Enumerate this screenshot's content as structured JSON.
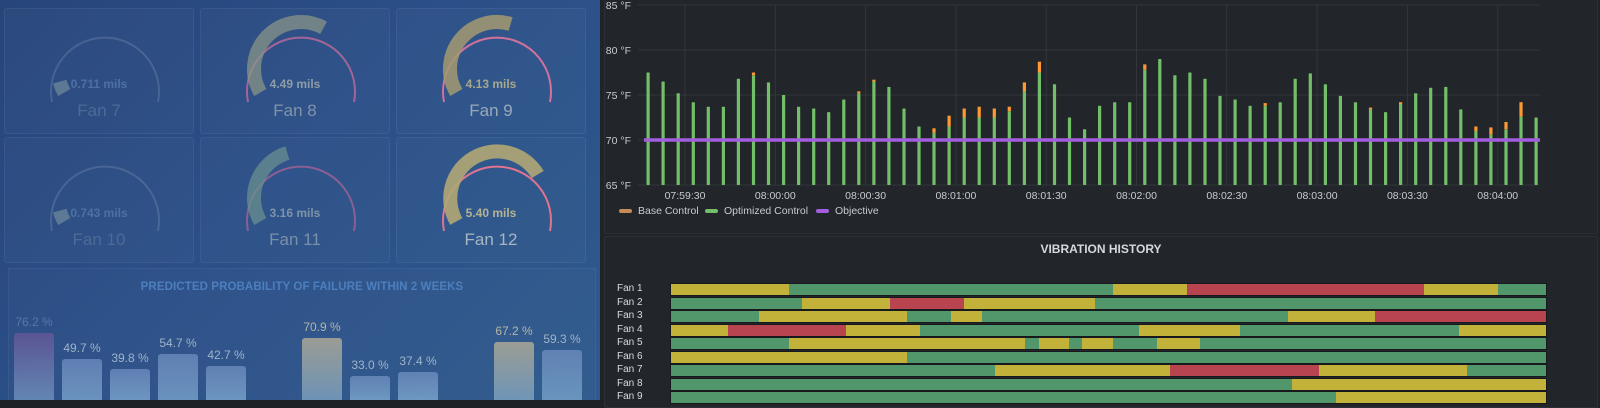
{
  "colors": {
    "optimized": "#73bf69",
    "base": "#ff9830",
    "objective": "#a35ee0",
    "vib_green": "#52976b",
    "vib_yellow": "#c2b23a",
    "vib_red": "#b8444f"
  },
  "gauges": [
    {
      "name": "Fan 7",
      "value_text": "0.711 mils",
      "fraction": 0.06
    },
    {
      "name": "Fan 8",
      "value_text": "4.49 mils",
      "fraction": 0.62
    },
    {
      "name": "Fan 9",
      "value_text": "4.13 mils",
      "fraction": 0.57
    },
    {
      "name": "Fan 10",
      "value_text": "0.743 mils",
      "fraction": 0.06
    },
    {
      "name": "Fan 11",
      "value_text": "3.16 mils",
      "fraction": 0.43
    },
    {
      "name": "Fan 12",
      "value_text": "5.40 mils",
      "fraction": 0.75
    }
  ],
  "failure": {
    "title": "PREDICTED PROBABILITY OF FAILURE WITHIN 2 WEEKS",
    "bars": [
      {
        "label": "76.2 %",
        "value": 76.2
      },
      {
        "label": "49.7 %",
        "value": 49.7
      },
      {
        "label": "39.8 %",
        "value": 39.8
      },
      {
        "label": "54.7 %",
        "value": 54.7
      },
      {
        "label": "42.7 %",
        "value": 42.7
      },
      {
        "label": "",
        "value": null
      },
      {
        "label": "70.9 %",
        "value": 70.9
      },
      {
        "label": "33.0 %",
        "value": 33.0
      },
      {
        "label": "37.4 %",
        "value": 37.4
      },
      {
        "label": "",
        "value": null
      },
      {
        "label": "67.2 %",
        "value": 67.2
      },
      {
        "label": "59.3 %",
        "value": 59.3
      }
    ]
  },
  "chart_data": {
    "type": "bar",
    "ylim": [
      65,
      85
    ],
    "y_ticks": [
      "65 °F",
      "70 °F",
      "75 °F",
      "80 °F",
      "85 °F"
    ],
    "x_tick_labels": [
      "07:59:30",
      "08:00:00",
      "08:00:30",
      "08:01:00",
      "08:01:30",
      "08:02:00",
      "08:02:30",
      "08:03:00",
      "08:03:30",
      "08:04:00"
    ],
    "objective": 70,
    "series": [
      {
        "name": "Base Control",
        "values": [
          0,
          0,
          0,
          0,
          0,
          0,
          0,
          0.3,
          0,
          0,
          0,
          0,
          0,
          0,
          0.2,
          0.2,
          0,
          0,
          0,
          0.5,
          1.2,
          1,
          1.2,
          1,
          0.5,
          1,
          1.2,
          0,
          0,
          0,
          0,
          0,
          0,
          0.6,
          0,
          0,
          0,
          0,
          0,
          0,
          0,
          0.3,
          0,
          0,
          0,
          0,
          0,
          0,
          0.2,
          0,
          0.2,
          0,
          0,
          0,
          0,
          0.5,
          0.8,
          0.8,
          1.6
        ]
      },
      {
        "name": "Optimized Control",
        "values": [
          77.5,
          76.5,
          75.2,
          74.2,
          73.7,
          73.7,
          76.8,
          77.2,
          76.4,
          75,
          73.7,
          73.5,
          73.1,
          74.5,
          75.2,
          76.5,
          75.9,
          73.5,
          71.5,
          70.8,
          71.5,
          72.5,
          72.5,
          72.5,
          73.2,
          75.4,
          77.5,
          76.2,
          72.5,
          71.2,
          73.8,
          74.2,
          74.2,
          77.8,
          79,
          77.2,
          77.5,
          76.8,
          74.9,
          74.5,
          73.8,
          73.8,
          74.2,
          76.8,
          77.4,
          76.2,
          74.9,
          74.2,
          73.4,
          73.1,
          74,
          75.2,
          75.8,
          75.9,
          73.4,
          71,
          70.6,
          71.2,
          72.6,
          72.5,
          73
        ]
      },
      {
        "name": "Objective",
        "values": [
          70
        ]
      }
    ],
    "legend": [
      "Base Control",
      "Optimized Control",
      "Objective"
    ],
    "legend_position": "bottom-left"
  },
  "vibration": {
    "title": "VIBRATION HISTORY",
    "rows": [
      {
        "label": "Fan 1",
        "segments": [
          [
            "y",
            13.5
          ],
          [
            "g",
            37
          ],
          [
            "y",
            8.5
          ],
          [
            "r",
            27
          ],
          [
            "y",
            8.5
          ],
          [
            "g",
            5.5
          ]
        ]
      },
      {
        "label": "Fan 2",
        "segments": [
          [
            "g",
            15
          ],
          [
            "y",
            10
          ],
          [
            "r",
            8.5
          ],
          [
            "y",
            15
          ],
          [
            "g",
            51.5
          ]
        ]
      },
      {
        "label": "Fan 3",
        "segments": [
          [
            "g",
            10
          ],
          [
            "y",
            17
          ],
          [
            "g",
            5
          ],
          [
            "y",
            3.5
          ],
          [
            "g",
            35
          ],
          [
            "y",
            10
          ],
          [
            "r",
            19.5
          ]
        ]
      },
      {
        "label": "Fan 4",
        "segments": [
          [
            "y",
            6.5
          ],
          [
            "r",
            13.5
          ],
          [
            "y",
            8.5
          ],
          [
            "g",
            25
          ],
          [
            "y",
            11.5
          ],
          [
            "g",
            25
          ],
          [
            "y",
            10
          ]
        ]
      },
      {
        "label": "Fan 5",
        "segments": [
          [
            "g",
            13.5
          ],
          [
            "y",
            27
          ],
          [
            "g",
            1.5
          ],
          [
            "y",
            3.5
          ],
          [
            "g",
            1.5
          ],
          [
            "y",
            3.5
          ],
          [
            "g",
            5
          ],
          [
            "y",
            5
          ],
          [
            "g",
            39.5
          ]
        ]
      },
      {
        "label": "Fan 6",
        "segments": [
          [
            "y",
            27
          ],
          [
            "g",
            73
          ]
        ]
      },
      {
        "label": "Fan 7",
        "segments": [
          [
            "g",
            37
          ],
          [
            "y",
            20
          ],
          [
            "r",
            17
          ],
          [
            "y",
            17
          ],
          [
            "g",
            9
          ]
        ]
      },
      {
        "label": "Fan 8",
        "segments": [
          [
            "g",
            71
          ],
          [
            "y",
            29
          ]
        ]
      },
      {
        "label": "Fan 9",
        "segments": [
          [
            "g",
            76
          ],
          [
            "y",
            24
          ]
        ]
      }
    ]
  }
}
